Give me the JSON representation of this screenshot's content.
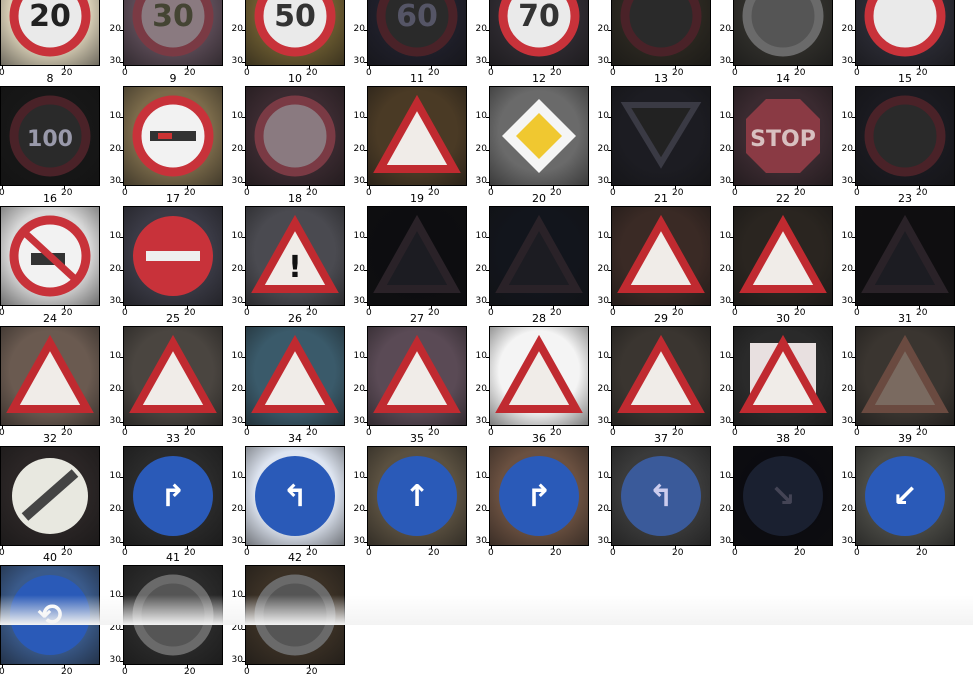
{
  "chart_data": {
    "type": "image-grid",
    "titles": [
      "",
      "",
      "",
      "",
      "",
      "",
      "",
      "",
      "8",
      "9",
      "10",
      "11",
      "12",
      "13",
      "14",
      "15",
      "16",
      "17",
      "18",
      "19",
      "20",
      "21",
      "22",
      "23",
      "24",
      "25",
      "26",
      "27",
      "28",
      "29",
      "30",
      "31",
      "32",
      "33",
      "34",
      "35",
      "36",
      "37",
      "38",
      "39",
      "40",
      "41",
      "42"
    ],
    "x_ticks": [
      "0",
      "20"
    ],
    "y_ticks": [
      "10",
      "20",
      "30"
    ],
    "cells": [
      {
        "bg": "#d8cfb6",
        "sign": "circle-red",
        "label": "20",
        "ink": "#222"
      },
      {
        "bg": "#5a4a55",
        "sign": "circle-red-dim",
        "label": "30",
        "ink": "#443"
      },
      {
        "bg": "#6a5a30",
        "sign": "circle-red",
        "label": "50",
        "ink": "#333"
      },
      {
        "bg": "#1f1f2a",
        "sign": "circle-red-dark",
        "label": "60",
        "ink": "#556"
      },
      {
        "bg": "#2e2a30",
        "sign": "circle-red",
        "label": "70",
        "ink": "#333"
      },
      {
        "bg": "#2a2720",
        "sign": "circle-red-dark",
        "label": "",
        "ink": "#555"
      },
      {
        "bg": "#2f2e2a",
        "sign": "circle-gray",
        "label": "",
        "ink": "#666"
      },
      {
        "bg": "#2a2a33",
        "sign": "circle-red",
        "label": "",
        "ink": "#444"
      },
      {
        "bg": "#171717",
        "sign": "circle-red-dark",
        "label": "100",
        "ink": "#99a"
      },
      {
        "bg": "#7a6a4a",
        "sign": "no-overtake",
        "label": "",
        "ink": "#222"
      },
      {
        "bg": "#3a2a30",
        "sign": "circle-red-dim",
        "label": "",
        "ink": "#522"
      },
      {
        "bg": "#4a3a25",
        "sign": "triangle",
        "label": "",
        "ink": "#222"
      },
      {
        "bg": "#6a6a6a",
        "sign": "diamond",
        "label": "",
        "ink": "#222"
      },
      {
        "bg": "#1c1c22",
        "sign": "triangle-down",
        "label": "",
        "ink": "#222"
      },
      {
        "bg": "#3a2a30",
        "sign": "stop",
        "label": "STOP",
        "ink": "#d8c0c0"
      },
      {
        "bg": "#1a1a20",
        "sign": "circle-red-dark",
        "label": "",
        "ink": "#333"
      },
      {
        "bg": "#d8d8d8",
        "sign": "no-truck",
        "label": "",
        "ink": "#222"
      },
      {
        "bg": "#3a3a45",
        "sign": "no-entry",
        "label": "",
        "ink": "#fff"
      },
      {
        "bg": "#4a4a50",
        "sign": "triangle",
        "label": "!",
        "ink": "#111"
      },
      {
        "bg": "#0d0d10",
        "sign": "triangle-dark",
        "label": "",
        "ink": "#222"
      },
      {
        "bg": "#12151c",
        "sign": "triangle-dark",
        "label": "",
        "ink": "#333"
      },
      {
        "bg": "#3a2a25",
        "sign": "triangle",
        "label": "",
        "ink": "#222"
      },
      {
        "bg": "#2a2520",
        "sign": "triangle",
        "label": "",
        "ink": "#333"
      },
      {
        "bg": "#0f0e10",
        "sign": "triangle-dark",
        "label": "",
        "ink": "#222"
      },
      {
        "bg": "#6a5a50",
        "sign": "triangle",
        "label": "",
        "ink": "#333"
      },
      {
        "bg": "#4a4540",
        "sign": "triangle",
        "label": "",
        "ink": "#222"
      },
      {
        "bg": "#3a5a6a",
        "sign": "triangle",
        "label": "",
        "ink": "#222"
      },
      {
        "bg": "#5a4a55",
        "sign": "triangle",
        "label": "",
        "ink": "#222"
      },
      {
        "bg": "#f4f4f4",
        "sign": "triangle",
        "label": "",
        "ink": "#222"
      },
      {
        "bg": "#3a3530",
        "sign": "triangle",
        "label": "",
        "ink": "#333"
      },
      {
        "bg": "#2a2a2a",
        "sign": "triangle-square",
        "label": "",
        "ink": "#333"
      },
      {
        "bg": "#3a3530",
        "sign": "triangle-dim",
        "label": "",
        "ink": "#555"
      },
      {
        "bg": "#2a2525",
        "sign": "end-limit",
        "label": "",
        "ink": "#333"
      },
      {
        "bg": "#2a2a2a",
        "sign": "blue-right",
        "label": "↱",
        "ink": "#fff"
      },
      {
        "bg": "#dde4f0",
        "sign": "blue-left",
        "label": "↰",
        "ink": "#fff"
      },
      {
        "bg": "#5a5040",
        "sign": "blue-ahead",
        "label": "↑",
        "ink": "#fff"
      },
      {
        "bg": "#6a5040",
        "sign": "blue-ahead-right",
        "label": "↱",
        "ink": "#fff"
      },
      {
        "bg": "#3a3a3a",
        "sign": "blue-left-dim",
        "label": "↰",
        "ink": "#cce"
      },
      {
        "bg": "#0b0b10",
        "sign": "blue-dark",
        "label": "↘",
        "ink": "#445"
      },
      {
        "bg": "#4a4a45",
        "sign": "blue-keep",
        "label": "↙",
        "ink": "#fff"
      },
      {
        "bg": "#3a5a8a",
        "sign": "roundabout",
        "label": "⟲",
        "ink": "#fff"
      },
      {
        "bg": "#2a2a2a",
        "sign": "circle-gray",
        "label": "",
        "ink": "#666"
      },
      {
        "bg": "#3a3025",
        "sign": "circle-gray",
        "label": "",
        "ink": "#777"
      }
    ]
  }
}
